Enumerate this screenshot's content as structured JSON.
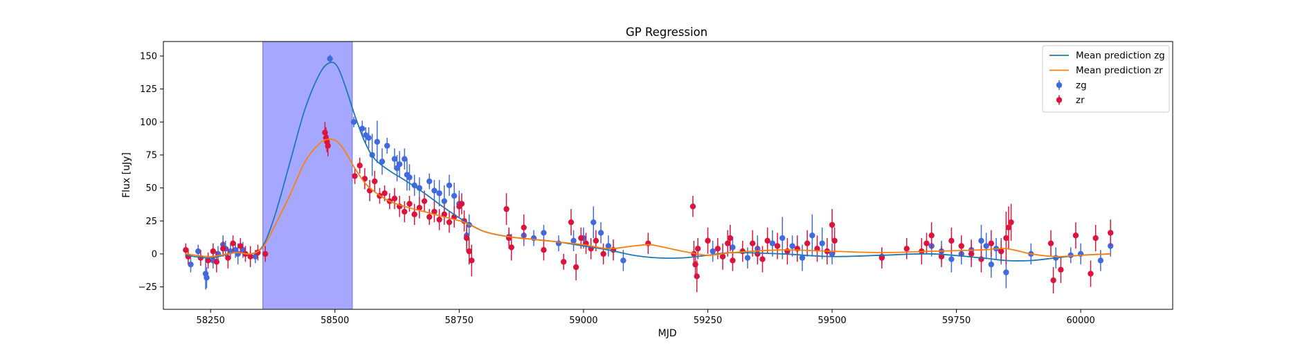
{
  "chart_data": {
    "type": "scatter",
    "title": "GP Regression",
    "xlabel": "MJD",
    "ylabel": "Flux [uJy]",
    "xlim": [
      58155,
      60185
    ],
    "ylim": [
      -42,
      161
    ],
    "xticks": [
      58250,
      58500,
      58750,
      59000,
      59250,
      59500,
      59750,
      60000
    ],
    "yticks": [
      -25,
      0,
      25,
      50,
      75,
      100,
      125,
      150
    ],
    "grid": false,
    "legend_position": "top-right",
    "highlight_region": {
      "x0": 58355,
      "x1": 58535,
      "color": "#a6a8ff"
    },
    "series": [
      {
        "name": "Mean prediction zg",
        "kind": "line",
        "color": "#1f77b4",
        "x": [
          58200,
          58250,
          58300,
          58330,
          58355,
          58380,
          58410,
          58440,
          58470,
          58490,
          58505,
          58520,
          58540,
          58560,
          58580,
          58610,
          58640,
          58680,
          58720,
          58760,
          58800,
          58850,
          58900,
          58950,
          59000,
          59050,
          59100,
          59150,
          59200,
          59250,
          59300,
          59400,
          59500,
          59600,
          59700,
          59800,
          59850,
          59900,
          59950,
          60000,
          60060
        ],
        "y": [
          -1,
          -3,
          1,
          0,
          6,
          30,
          70,
          110,
          137,
          145,
          142,
          128,
          105,
          85,
          72,
          63,
          56,
          46,
          35,
          25,
          17,
          13,
          11,
          9,
          6,
          3,
          -1,
          -3,
          -3,
          -1,
          1,
          0,
          -2,
          -1,
          0,
          -3,
          -5,
          -5,
          -3,
          -1,
          0
        ]
      },
      {
        "name": "Mean prediction zr",
        "kind": "line",
        "color": "#ff7f0e",
        "x": [
          58200,
          58250,
          58300,
          58330,
          58355,
          58380,
          58410,
          58440,
          58470,
          58490,
          58505,
          58520,
          58540,
          58560,
          58580,
          58610,
          58640,
          58680,
          58720,
          58760,
          58800,
          58850,
          58900,
          58950,
          59000,
          59050,
          59100,
          59130,
          59150,
          59200,
          59250,
          59300,
          59400,
          59500,
          59600,
          59700,
          59800,
          59850,
          59900,
          59950,
          60000,
          60060
        ],
        "y": [
          0,
          -2,
          1,
          0,
          5,
          22,
          45,
          70,
          84,
          87,
          85,
          78,
          65,
          54,
          47,
          40,
          36,
          32,
          28,
          24,
          17,
          13,
          11,
          9,
          7,
          4,
          6,
          7,
          6,
          2,
          -1,
          1,
          3,
          2,
          1,
          2,
          3,
          4,
          0,
          -2,
          -1,
          0
        ]
      },
      {
        "name": "zg",
        "kind": "errorbar",
        "color": "#4169e1",
        "x": [
          58210,
          58225,
          58240,
          58242,
          58255,
          58265,
          58275,
          58280,
          58290,
          58300,
          58305,
          58315,
          58340,
          58490,
          58538,
          58555,
          58562,
          58568,
          58575,
          58585,
          58595,
          58605,
          58620,
          58625,
          58630,
          58640,
          58645,
          58650,
          58660,
          58670,
          58690,
          58700,
          58710,
          58720,
          58730,
          58740,
          58750,
          58765,
          58770,
          58850,
          58880,
          58900,
          58920,
          58950,
          58980,
          59000,
          59020,
          59035,
          59050,
          59080,
          59260,
          59300,
          59330,
          59350,
          59380,
          59400,
          59420,
          59440,
          59460,
          59480,
          59500,
          59600,
          59700,
          59720,
          59740,
          59760,
          59780,
          59800,
          59810,
          59820,
          59830,
          59840,
          59850,
          59900,
          59950,
          59980,
          60000,
          60040,
          60060
        ],
        "y": [
          -8,
          2,
          -15,
          -18,
          -5,
          0,
          7,
          4,
          2,
          3,
          0,
          3,
          -2,
          148,
          100,
          95,
          90,
          88,
          75,
          85,
          70,
          82,
          72,
          65,
          68,
          72,
          60,
          58,
          52,
          50,
          55,
          48,
          46,
          40,
          52,
          44,
          38,
          14,
          22,
          13,
          14,
          12,
          16,
          8,
          10,
          12,
          24,
          16,
          6,
          -5,
          2,
          5,
          -3,
          4,
          8,
          12,
          6,
          -3,
          14,
          8,
          0,
          -2,
          6,
          2,
          -4,
          0,
          3,
          10,
          6,
          -8,
          4,
          2,
          -14,
          0,
          -3,
          -1,
          0,
          -5,
          6
        ],
        "yerr": [
          6,
          5,
          12,
          8,
          6,
          6,
          7,
          6,
          6,
          6,
          8,
          6,
          5,
          3,
          4,
          6,
          6,
          8,
          16,
          16,
          10,
          6,
          8,
          10,
          10,
          8,
          12,
          10,
          8,
          8,
          6,
          8,
          10,
          12,
          8,
          10,
          10,
          8,
          8,
          6,
          8,
          6,
          6,
          6,
          8,
          8,
          12,
          8,
          8,
          8,
          8,
          8,
          8,
          10,
          10,
          16,
          8,
          10,
          16,
          12,
          8,
          6,
          8,
          8,
          10,
          8,
          8,
          12,
          10,
          10,
          8,
          10,
          12,
          8,
          8,
          6,
          8,
          8,
          8
        ]
      },
      {
        "name": "zr",
        "kind": "errorbar",
        "color": "#dc143c",
        "x": [
          58200,
          58205,
          58230,
          58245,
          58255,
          58262,
          58275,
          58285,
          58295,
          58310,
          58320,
          58330,
          58345,
          58360,
          58480,
          58482,
          58484,
          58486,
          58540,
          58550,
          58560,
          58570,
          58580,
          58590,
          58600,
          58610,
          58620,
          58630,
          58640,
          58650,
          58660,
          58670,
          58680,
          58690,
          58700,
          58710,
          58720,
          58730,
          58740,
          58750,
          58755,
          58760,
          58765,
          58770,
          58775,
          58845,
          58850,
          58855,
          58880,
          58920,
          58960,
          58975,
          58985,
          58995,
          59005,
          59015,
          59025,
          59040,
          59060,
          59130,
          59220,
          59222,
          59225,
          59228,
          59230,
          59250,
          59270,
          59280,
          59290,
          59295,
          59300,
          59320,
          59340,
          59350,
          59360,
          59370,
          59390,
          59410,
          59430,
          59450,
          59470,
          59490,
          59500,
          59505,
          59600,
          59650,
          59680,
          59690,
          59700,
          59720,
          59740,
          59760,
          59780,
          59800,
          59820,
          59840,
          59850,
          59855,
          59860,
          59940,
          59945,
          59960,
          59990,
          60020,
          60030,
          60060
        ],
        "y": [
          3,
          -2,
          -3,
          -5,
          2,
          -6,
          4,
          -3,
          8,
          6,
          0,
          -2,
          1,
          0,
          92,
          88,
          85,
          82,
          59,
          67,
          57,
          48,
          55,
          44,
          46,
          40,
          42,
          36,
          32,
          38,
          30,
          35,
          40,
          28,
          32,
          26,
          30,
          24,
          28,
          36,
          38,
          25,
          12,
          2,
          -5,
          34,
          12,
          5,
          20,
          3,
          -6,
          24,
          -10,
          12,
          8,
          4,
          10,
          0,
          3,
          8,
          36,
          0,
          -8,
          -17,
          4,
          10,
          4,
          -2,
          8,
          12,
          -5,
          2,
          8,
          0,
          -4,
          10,
          6,
          2,
          4,
          8,
          4,
          2,
          22,
          10,
          -3,
          4,
          2,
          8,
          14,
          -2,
          10,
          6,
          0,
          -4,
          8,
          2,
          12,
          20,
          24,
          8,
          -20,
          -12,
          14,
          -15,
          12,
          16
        ],
        "yerr": [
          5,
          6,
          6,
          6,
          6,
          8,
          6,
          8,
          6,
          6,
          6,
          8,
          6,
          6,
          8,
          8,
          8,
          8,
          6,
          6,
          8,
          8,
          8,
          6,
          6,
          6,
          8,
          8,
          8,
          6,
          8,
          8,
          8,
          6,
          8,
          8,
          8,
          8,
          8,
          8,
          8,
          8,
          10,
          10,
          12,
          12,
          8,
          10,
          10,
          8,
          6,
          10,
          10,
          8,
          8,
          8,
          8,
          8,
          8,
          8,
          8,
          10,
          10,
          12,
          8,
          10,
          8,
          10,
          10,
          10,
          8,
          8,
          10,
          8,
          10,
          10,
          10,
          10,
          10,
          10,
          10,
          10,
          12,
          10,
          8,
          8,
          10,
          8,
          10,
          8,
          10,
          8,
          10,
          10,
          10,
          8,
          20,
          16,
          14,
          10,
          10,
          10,
          10,
          10,
          10,
          10
        ]
      }
    ]
  }
}
